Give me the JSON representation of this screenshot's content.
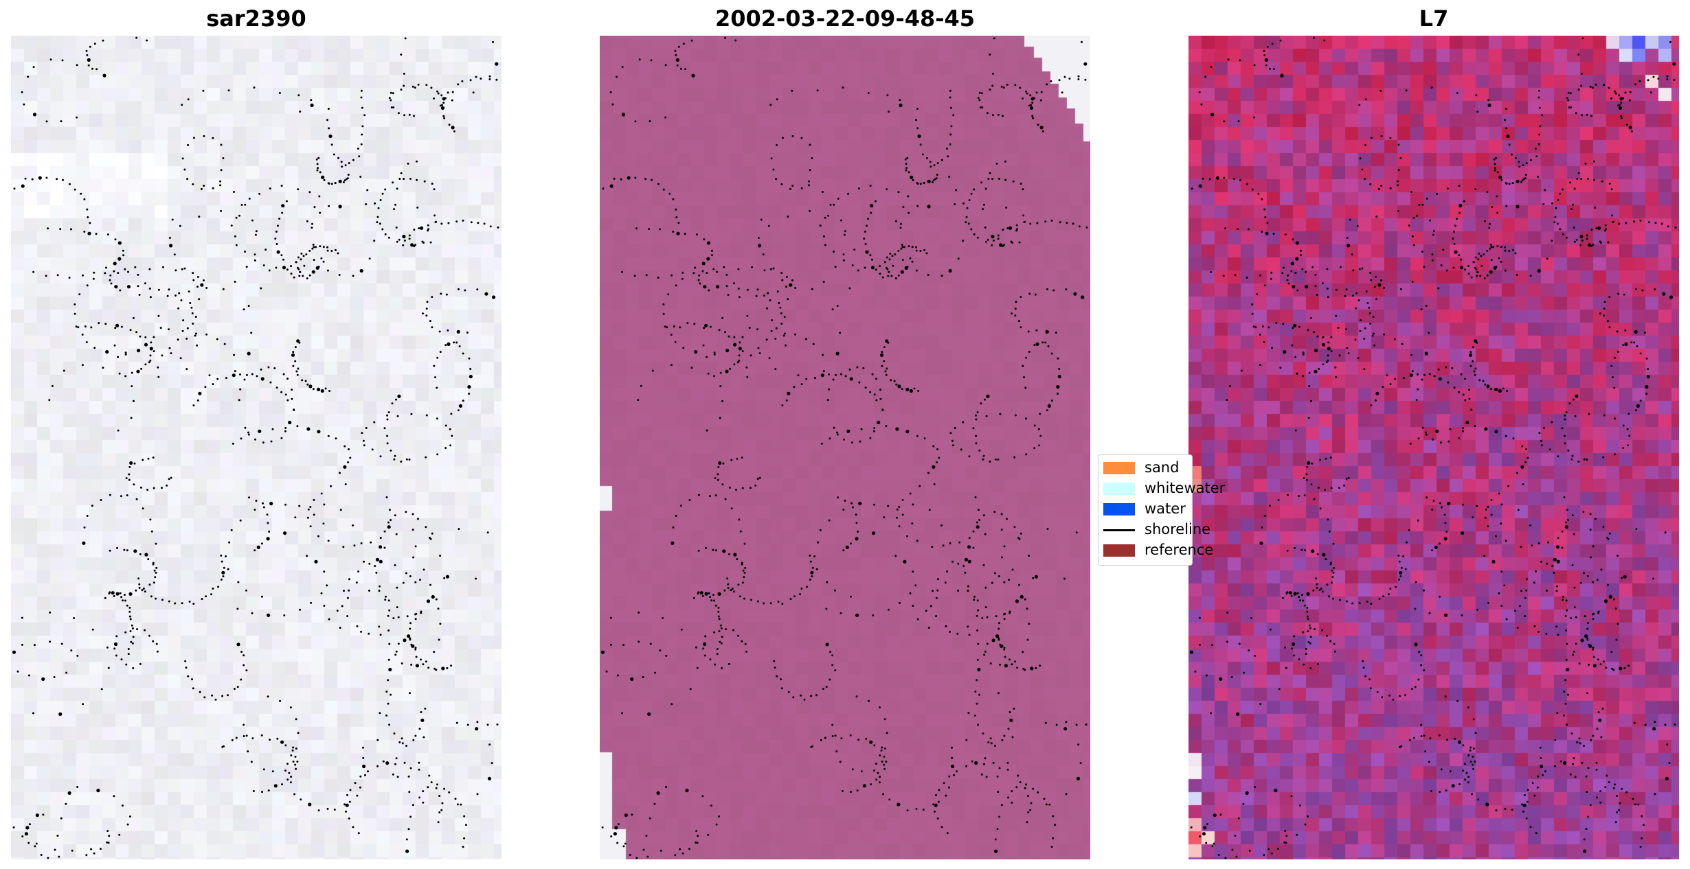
{
  "panels": [
    {
      "id": "sar",
      "title": "sar2390"
    },
    {
      "id": "classified",
      "title": "2002-03-22-09-48-45"
    },
    {
      "id": "l7",
      "title": "L7"
    }
  ],
  "legend": {
    "items": [
      {
        "label": "sand",
        "color": "#ff8c3a",
        "kind": "patch"
      },
      {
        "label": "whitewater",
        "color": "#ccffff",
        "kind": "patch"
      },
      {
        "label": "water",
        "color": "#0055ee",
        "kind": "patch"
      },
      {
        "label": "shoreline",
        "color": "#000000",
        "kind": "line"
      },
      {
        "label": "reference",
        "color": "#9e2f2f",
        "kind": "patch"
      }
    ]
  },
  "colors": {
    "sar_base": "#eeeef2",
    "classified_base": "#b05d8f",
    "l7_red": "#d02a5e",
    "l7_purple": "#9048a8",
    "shoreline_dots": "#000000"
  }
}
